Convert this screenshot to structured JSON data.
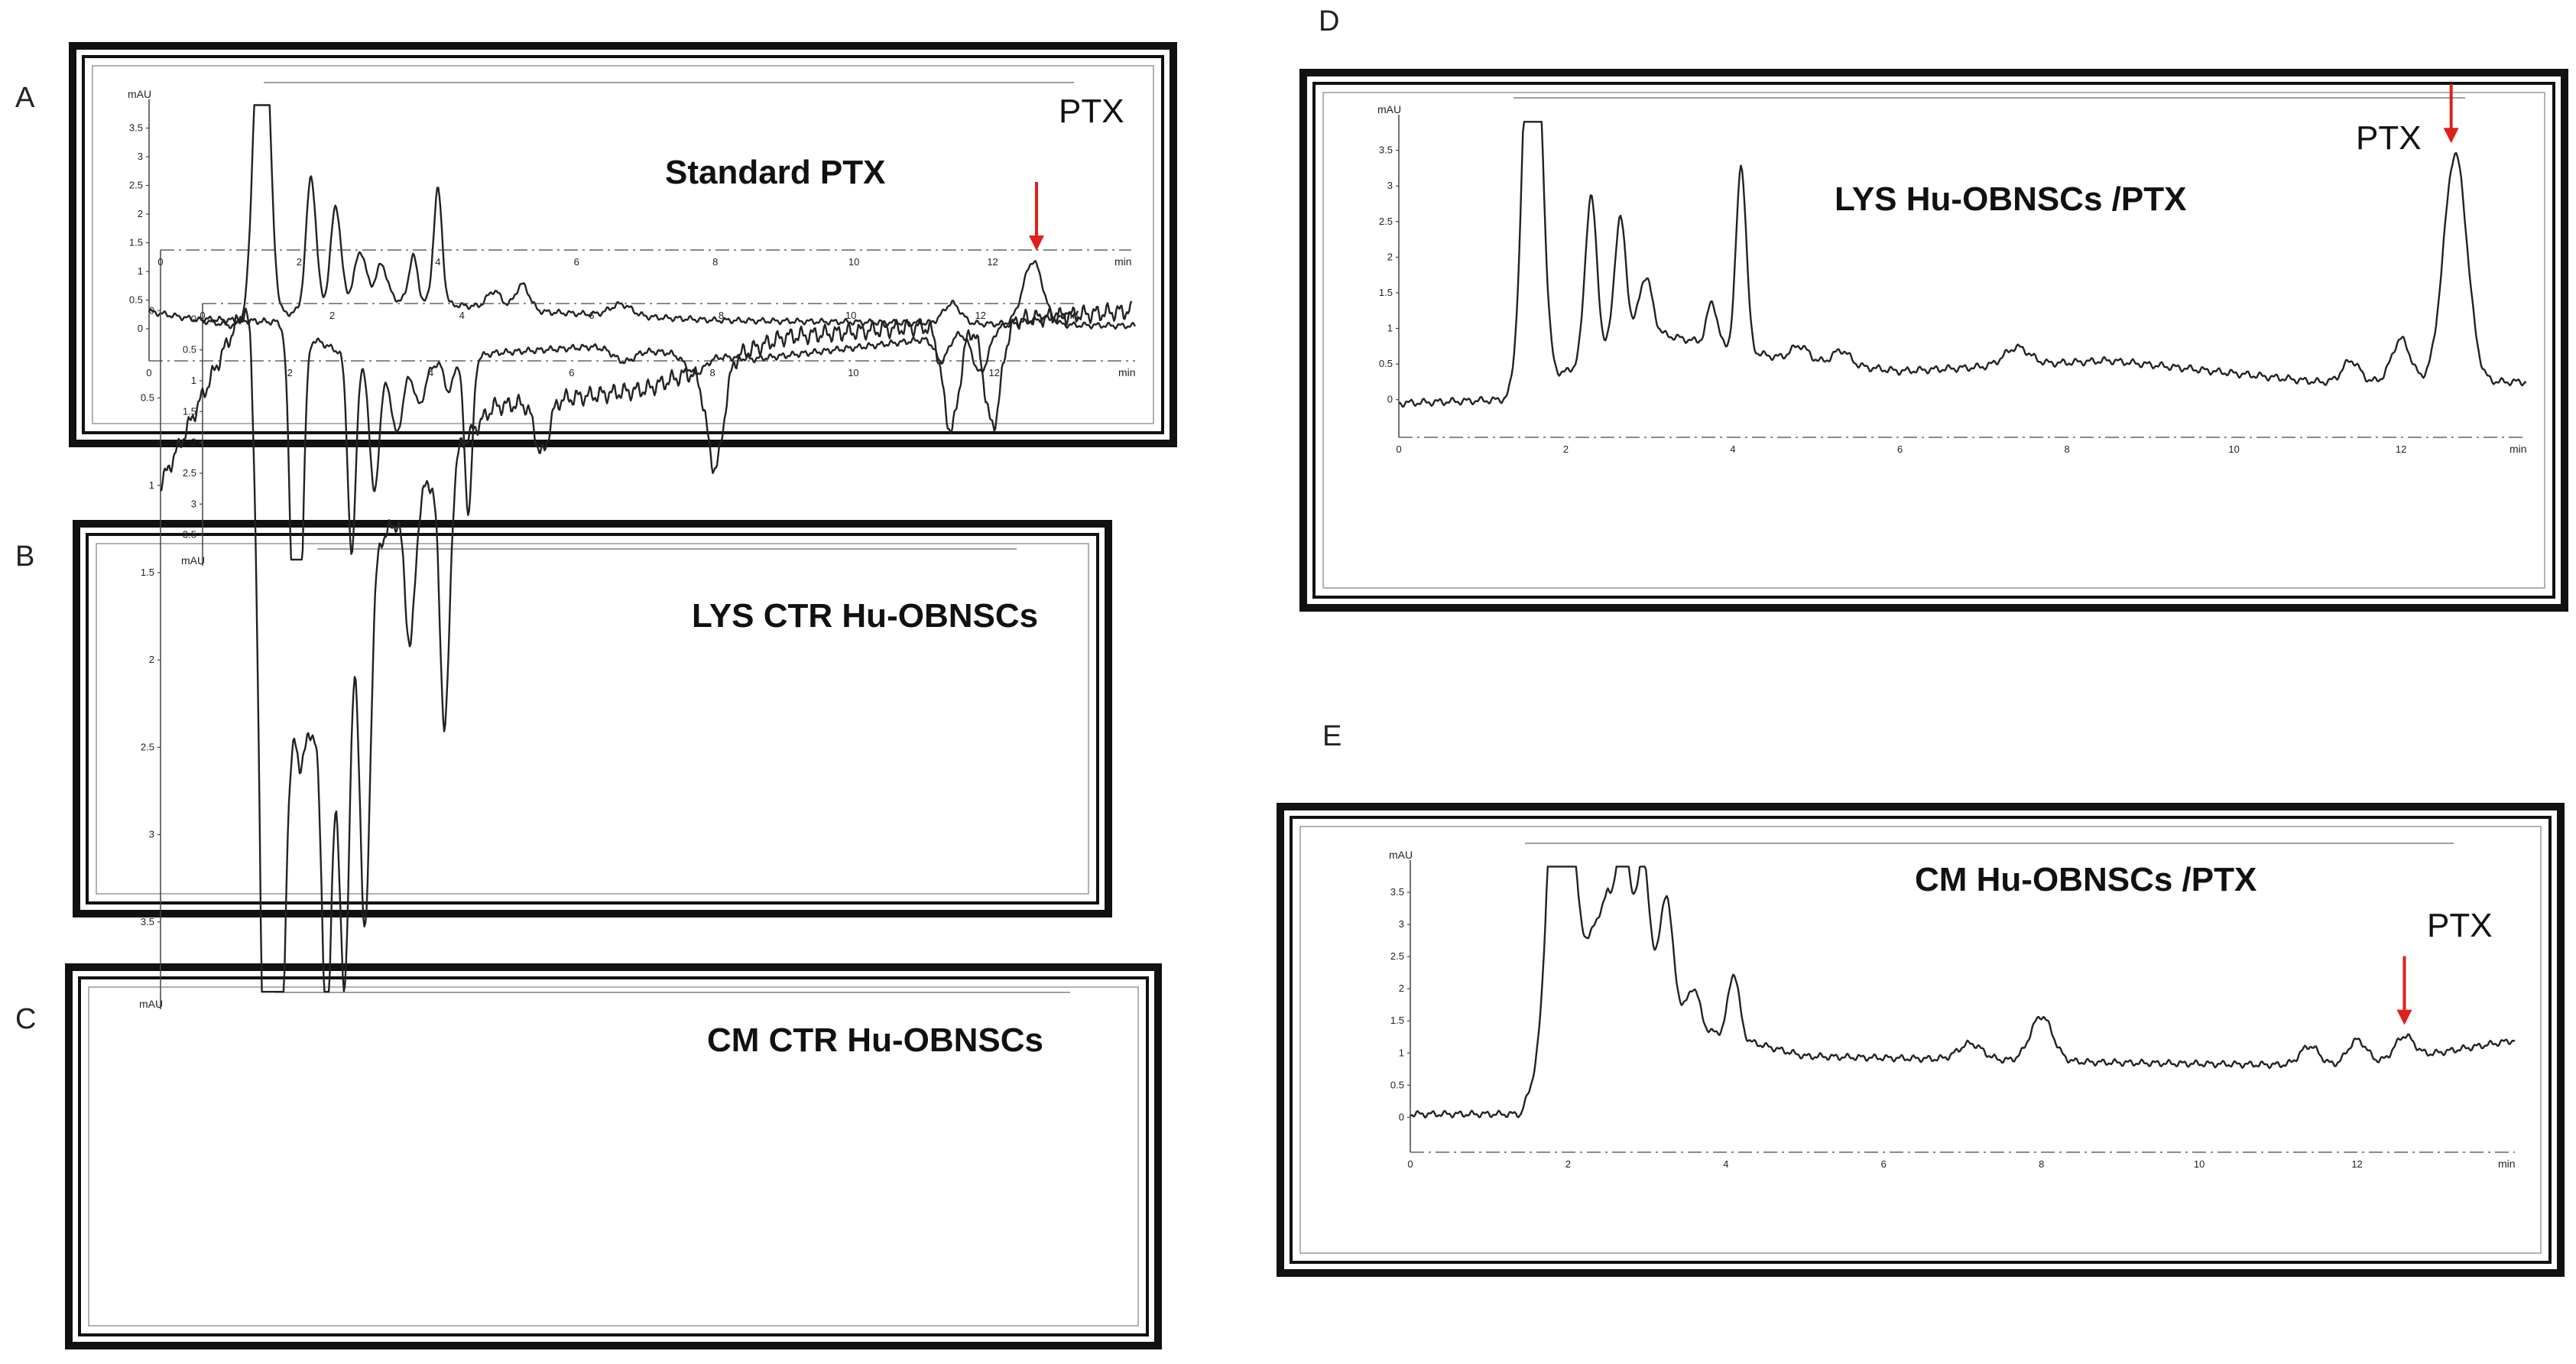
{
  "colors": {
    "frame": "#111111",
    "trace": "#222222",
    "arrow": "#e0201b"
  },
  "chart_data": [
    {
      "panel": "A",
      "type": "line",
      "title": "Standard PTX",
      "ylabel": "mAU",
      "xlabel": "min",
      "xlim": [
        0,
        14
      ],
      "ylim": [
        -0.4,
        4.0
      ],
      "xticks": [
        "0",
        "2",
        "4",
        "6",
        "8",
        "10",
        "12"
      ],
      "yticks": [
        "0",
        "0.5",
        "1",
        "1.5",
        "2",
        "2.5",
        "3",
        "3.5"
      ],
      "annotation": {
        "text": "PTX",
        "x": 12.6
      },
      "peaks": [
        {
          "rt": 1.6,
          "h": 7.0,
          "w": 0.1
        },
        {
          "rt": 2.3,
          "h": 2.3,
          "w": 0.07
        },
        {
          "rt": 2.65,
          "h": 1.7,
          "w": 0.07
        },
        {
          "rt": 3.0,
          "h": 0.8,
          "w": 0.08
        },
        {
          "rt": 3.3,
          "h": 0.6,
          "w": 0.08
        },
        {
          "rt": 3.75,
          "h": 0.8,
          "w": 0.06
        },
        {
          "rt": 4.1,
          "h": 2.0,
          "w": 0.06
        },
        {
          "rt": 4.9,
          "h": 0.3,
          "w": 0.1
        },
        {
          "rt": 5.3,
          "h": 0.45,
          "w": 0.1
        },
        {
          "rt": 6.7,
          "h": 0.2,
          "w": 0.15
        },
        {
          "rt": 11.4,
          "h": 0.35,
          "w": 0.12
        },
        {
          "rt": 12.55,
          "h": 1.1,
          "w": 0.14
        }
      ],
      "baseline": [
        [
          0,
          0.3
        ],
        [
          1.2,
          0.05
        ],
        [
          3.0,
          0.55
        ],
        [
          5.5,
          0.3
        ],
        [
          8,
          0.15
        ],
        [
          14,
          0.05
        ]
      ]
    },
    {
      "panel": "B",
      "type": "line",
      "title": "LYS CTR Hu-OBNSCs",
      "ylabel": "mAU",
      "xlabel": "min",
      "xlim": [
        0,
        13.5
      ],
      "ylim": [
        -0.4,
        4.0
      ],
      "xticks": [
        "0",
        "2",
        "4",
        "6",
        "8",
        "10",
        "12"
      ],
      "yticks": [
        "0",
        "0.5",
        "1",
        "1.5",
        "2",
        "2.5",
        "3",
        "3.5"
      ],
      "annotation": null,
      "peaks": [
        {
          "rt": 1.45,
          "h": 7.0,
          "w": 0.08
        },
        {
          "rt": 2.3,
          "h": 3.2,
          "w": 0.06
        },
        {
          "rt": 2.65,
          "h": 2.0,
          "w": 0.07
        },
        {
          "rt": 3.0,
          "h": 1.0,
          "w": 0.08
        },
        {
          "rt": 3.35,
          "h": 0.6,
          "w": 0.08
        },
        {
          "rt": 3.8,
          "h": 0.5,
          "w": 0.06
        },
        {
          "rt": 4.1,
          "h": 2.5,
          "w": 0.06
        },
        {
          "rt": 6.5,
          "h": 0.2,
          "w": 0.15
        },
        {
          "rt": 7.6,
          "h": 0.3,
          "w": 0.15
        },
        {
          "rt": 11.4,
          "h": 0.4,
          "w": 0.1
        },
        {
          "rt": 12.0,
          "h": 0.7,
          "w": 0.12
        }
      ],
      "baseline": [
        [
          0,
          0.0
        ],
        [
          1.2,
          0.05
        ],
        [
          2.8,
          0.9
        ],
        [
          4.5,
          0.55
        ],
        [
          6,
          0.45
        ],
        [
          8.5,
          0.65
        ],
        [
          11,
          0.35
        ],
        [
          13.5,
          -0.1
        ]
      ]
    },
    {
      "panel": "C",
      "type": "line",
      "title": "CM CTR Hu-OBNSCs",
      "ylabel": "mAU",
      "xlabel": "min",
      "xlim": [
        0,
        14
      ],
      "ylim": [
        -0.4,
        4.0
      ],
      "xticks": [
        "0",
        "2",
        "4",
        "6",
        "8",
        "10",
        "12"
      ],
      "yticks": [
        "0",
        "0.5",
        "1",
        "1.5",
        "2",
        "2.5",
        "3",
        "3.5"
      ],
      "annotation": null,
      "peaks": [
        {
          "rt": 1.6,
          "h": 7.0,
          "w": 0.12
        },
        {
          "rt": 2.4,
          "h": 2.0,
          "w": 0.07
        },
        {
          "rt": 2.65,
          "h": 2.0,
          "w": 0.07
        },
        {
          "rt": 2.95,
          "h": 2.0,
          "w": 0.07
        },
        {
          "rt": 3.6,
          "h": 0.8,
          "w": 0.07
        },
        {
          "rt": 4.1,
          "h": 1.5,
          "w": 0.07
        },
        {
          "rt": 5.5,
          "h": 0.3,
          "w": 0.1
        },
        {
          "rt": 8.0,
          "h": 0.6,
          "w": 0.12
        },
        {
          "rt": 11.4,
          "h": 0.6,
          "w": 0.12
        },
        {
          "rt": 12.0,
          "h": 0.6,
          "w": 0.12
        }
      ],
      "baseline": [
        [
          0,
          1.0
        ],
        [
          1.3,
          -0.1
        ],
        [
          2.0,
          2.6
        ],
        [
          3.2,
          1.3
        ],
        [
          4.8,
          0.55
        ],
        [
          7,
          0.45
        ],
        [
          9,
          0.15
        ],
        [
          14,
          0.0
        ]
      ]
    },
    {
      "panel": "D",
      "type": "line",
      "title": "LYS Hu-OBNSCs /PTX",
      "ylabel": "mAU",
      "xlabel": "min",
      "xlim": [
        0,
        13.5
      ],
      "ylim": [
        -0.4,
        4.0
      ],
      "xticks": [
        "0",
        "2",
        "4",
        "6",
        "8",
        "10",
        "12"
      ],
      "yticks": [
        "0",
        "0.5",
        "1",
        "1.5",
        "2",
        "2.5",
        "3",
        "3.5"
      ],
      "annotation": {
        "text": "PTX",
        "x": 12.6
      },
      "peaks": [
        {
          "rt": 1.6,
          "h": 7.0,
          "w": 0.1
        },
        {
          "rt": 2.3,
          "h": 2.3,
          "w": 0.07
        },
        {
          "rt": 2.65,
          "h": 1.8,
          "w": 0.07
        },
        {
          "rt": 2.95,
          "h": 0.8,
          "w": 0.08
        },
        {
          "rt": 3.75,
          "h": 0.6,
          "w": 0.06
        },
        {
          "rt": 4.1,
          "h": 2.6,
          "w": 0.06
        },
        {
          "rt": 4.8,
          "h": 0.2,
          "w": 0.1
        },
        {
          "rt": 5.3,
          "h": 0.2,
          "w": 0.1
        },
        {
          "rt": 7.4,
          "h": 0.25,
          "w": 0.15
        },
        {
          "rt": 11.4,
          "h": 0.3,
          "w": 0.1
        },
        {
          "rt": 12.0,
          "h": 0.6,
          "w": 0.11
        },
        {
          "rt": 12.65,
          "h": 3.2,
          "w": 0.14
        }
      ],
      "baseline": [
        [
          0,
          -0.05
        ],
        [
          1.3,
          0.0
        ],
        [
          3.0,
          0.95
        ],
        [
          4.5,
          0.6
        ],
        [
          6,
          0.4
        ],
        [
          8.5,
          0.55
        ],
        [
          11,
          0.25
        ],
        [
          13.5,
          0.25
        ]
      ]
    },
    {
      "panel": "E",
      "type": "line",
      "title": "CM Hu-OBNSCs /PTX",
      "ylabel": "mAU",
      "xlabel": "min",
      "xlim": [
        0,
        14
      ],
      "ylim": [
        -0.4,
        4.0
      ],
      "xticks": [
        "0",
        "2",
        "4",
        "6",
        "8",
        "10",
        "12"
      ],
      "yticks": [
        "0",
        "0.5",
        "1",
        "1.5",
        "2",
        "2.5",
        "3",
        "3.5"
      ],
      "annotation": {
        "text": "PTX",
        "x": 12.6
      },
      "peaks": [
        {
          "rt": 1.9,
          "h": 7.0,
          "w": 0.12
        },
        {
          "rt": 2.7,
          "h": 1.4,
          "w": 0.07
        },
        {
          "rt": 2.95,
          "h": 1.4,
          "w": 0.07
        },
        {
          "rt": 3.25,
          "h": 1.4,
          "w": 0.07
        },
        {
          "rt": 3.6,
          "h": 0.6,
          "w": 0.07
        },
        {
          "rt": 4.1,
          "h": 1.0,
          "w": 0.07
        },
        {
          "rt": 7.1,
          "h": 0.25,
          "w": 0.15
        },
        {
          "rt": 8.0,
          "h": 0.7,
          "w": 0.14
        },
        {
          "rt": 11.4,
          "h": 0.3,
          "w": 0.12
        },
        {
          "rt": 12.0,
          "h": 0.4,
          "w": 0.12
        },
        {
          "rt": 12.6,
          "h": 0.35,
          "w": 0.12
        }
      ],
      "baseline": [
        [
          0,
          0.05
        ],
        [
          1.4,
          0.05
        ],
        [
          2.5,
          3.5
        ],
        [
          3.6,
          1.4
        ],
        [
          5,
          0.95
        ],
        [
          7,
          0.9
        ],
        [
          9,
          0.85
        ],
        [
          12,
          0.8
        ],
        [
          14,
          1.2
        ]
      ]
    }
  ],
  "layout_note": "The five chromatogram panels are drawn from chart_data; positions are defined in the script."
}
